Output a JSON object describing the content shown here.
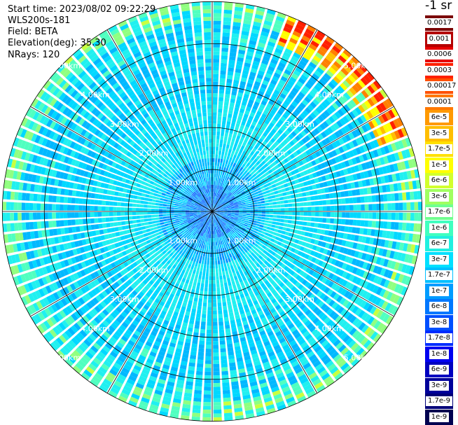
{
  "header": {
    "start_time": "Start time: 2023/08/02 09:22:29",
    "instrument": "WLS200s-181",
    "field": "Field: BETA",
    "elevation": "Elevation(deg): 35.30",
    "nrays": "NRays: 120"
  },
  "legend": {
    "unit": "-1 sr",
    "entries": [
      {
        "label": "0.0017",
        "color": "#7a0000"
      },
      {
        "label": "0.001",
        "color": "#b40000"
      },
      {
        "label": "0.0006",
        "color": "#e60000"
      },
      {
        "label": "0.0003",
        "color": "#ff2000"
      },
      {
        "label": "0.00017",
        "color": "#ff5000"
      },
      {
        "label": "0.0001",
        "color": "#ff7800"
      },
      {
        "label": "6e-5",
        "color": "#ff9a00"
      },
      {
        "label": "3e-5",
        "color": "#ffbe00"
      },
      {
        "label": "1.7e-5",
        "color": "#ffe000"
      },
      {
        "label": "1e-5",
        "color": "#ffff00"
      },
      {
        "label": "6e-6",
        "color": "#d2ff2d"
      },
      {
        "label": "3e-6",
        "color": "#a0ff60"
      },
      {
        "label": "1.7e-6",
        "color": "#70ff90"
      },
      {
        "label": "1e-6",
        "color": "#40ffc0"
      },
      {
        "label": "6e-7",
        "color": "#20f0e0"
      },
      {
        "label": "3e-7",
        "color": "#00e0ff"
      },
      {
        "label": "1.7e-7",
        "color": "#00c0ff"
      },
      {
        "label": "1e-7",
        "color": "#009cff"
      },
      {
        "label": "6e-8",
        "color": "#0078ff"
      },
      {
        "label": "3e-8",
        "color": "#0050ff"
      },
      {
        "label": "1.7e-8",
        "color": "#002cff"
      },
      {
        "label": "1e-8",
        "color": "#0000f0"
      },
      {
        "label": "6e-9",
        "color": "#0000c0"
      },
      {
        "label": "3e-9",
        "color": "#00009a"
      },
      {
        "label": "1.7e-9",
        "color": "#000078"
      },
      {
        "label": "1e-9",
        "color": "#000050"
      }
    ]
  },
  "range_rings": [
    {
      "label": "1.00km",
      "km": 1
    },
    {
      "label": "2.00km",
      "km": 2
    },
    {
      "label": "3.00km",
      "km": 3
    },
    {
      "label": "4.00km",
      "km": 4
    },
    {
      "label": "5.00km",
      "km": 5
    }
  ],
  "ppi": {
    "max_range_km": 5.0,
    "azimuth_gridlines_deg": [
      0,
      30,
      60,
      90,
      120,
      150,
      180,
      210,
      240,
      270,
      300,
      330
    ]
  }
}
